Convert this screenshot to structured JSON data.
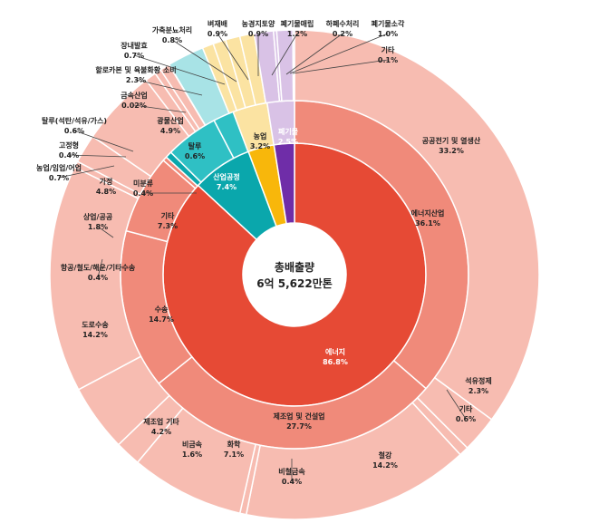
{
  "chart_data": {
    "type": "sunburst",
    "title": "",
    "center_label": [
      "총배출량",
      "6억 5,622만톤"
    ],
    "colors": {
      "energy_inner": "#e64a35",
      "energy_middle": "#f08a7a",
      "energy_outer": "#f7bcb1",
      "industrial_inner": "#0aa7ac",
      "industrial_middle": "#2fc0c4",
      "industrial_outer": "#a8e3e6",
      "agri_inner": "#f8b70b",
      "agri_outer": "#fbe3a2",
      "waste_inner": "#6f2da8",
      "waste_outer": "#d9c2e6"
    },
    "rings": [
      {
        "level": "inner",
        "segments": [
          {
            "id": "en",
            "name": "에너지",
            "value": "86.8%",
            "v": 86.8,
            "color": "energy_inner"
          },
          {
            "id": "ip",
            "name": "산업공정",
            "value": "7.4%",
            "v": 7.4,
            "color": "industrial_inner"
          },
          {
            "id": "ag",
            "name": "농업",
            "value": "3.2%",
            "v": 3.2,
            "color": "agri_inner"
          },
          {
            "id": "wa",
            "name": "폐기물",
            "value": "2.5%",
            "v": 2.5,
            "color": "waste_inner"
          }
        ]
      },
      {
        "level": "middle",
        "segments": [
          {
            "id": "en_ind",
            "name": "에너지산업",
            "value": "36.1%",
            "v": 36.1,
            "color": "energy_middle"
          },
          {
            "id": "en_mfg",
            "name": "제조업 및 건설업",
            "value": "27.7%",
            "v": 27.7,
            "color": "energy_middle"
          },
          {
            "id": "en_tr",
            "name": "수송",
            "value": "14.7%",
            "v": 14.7,
            "color": "energy_middle"
          },
          {
            "id": "en_etc",
            "name": "기타",
            "value": "7.3%",
            "v": 7.3,
            "color": "energy_middle"
          },
          {
            "id": "en_fug",
            "name": "미분류",
            "value": "0.4%",
            "v": 0.4,
            "color": "energy_middle"
          },
          {
            "id": "ip_min",
            "name": "탈루",
            "value": "0.6%",
            "v": 0.6,
            "color": "industrial_inner"
          },
          {
            "id": "ip_mine",
            "name": "광물산업",
            "value": "4.9%",
            "v": 4.9,
            "color": "industrial_middle"
          },
          {
            "id": "ip_rest",
            "name": "",
            "value": "",
            "v": 1.9,
            "color": "industrial_middle"
          },
          {
            "id": "ag_m",
            "name": "",
            "value": "",
            "v": 3.2,
            "color": "agri_outer"
          },
          {
            "id": "wa_m",
            "name": "",
            "value": "",
            "v": 2.5,
            "color": "waste_outer"
          }
        ]
      },
      {
        "level": "outer",
        "segments": [
          {
            "id": "o1",
            "name": "공공전기 및 열생산",
            "value": "33.2%",
            "v": 33.2,
            "color": "energy_outer"
          },
          {
            "id": "o2",
            "name": "석유정제",
            "value": "2.3%",
            "v": 2.3,
            "color": "energy_outer"
          },
          {
            "id": "o3",
            "name": "기타",
            "value": "0.6%",
            "v": 0.6,
            "color": "energy_outer"
          },
          {
            "id": "o4",
            "name": "철강",
            "value": "14.2%",
            "v": 14.2,
            "color": "energy_outer"
          },
          {
            "id": "o5",
            "name": "비철금속",
            "value": "0.4%",
            "v": 0.4,
            "color": "energy_outer"
          },
          {
            "id": "o6",
            "name": "화학",
            "value": "7.1%",
            "v": 7.1,
            "color": "energy_outer"
          },
          {
            "id": "o7",
            "name": "비금속",
            "value": "1.6%",
            "v": 1.6,
            "color": "energy_outer"
          },
          {
            "id": "o8",
            "name": "제조업 기타",
            "value": "4.2%",
            "v": 4.2,
            "color": "energy_outer"
          },
          {
            "id": "o9",
            "name": "도로수송",
            "value": "14.2%",
            "v": 14.2,
            "color": "energy_outer"
          },
          {
            "id": "o10",
            "name": "항공/철도/해운/기타수송",
            "value": "0.4%",
            "v": 0.4,
            "color": "energy_outer"
          },
          {
            "id": "o11",
            "name": "상업/공공",
            "value": "1.8%",
            "v": 1.8,
            "color": "energy_outer"
          },
          {
            "id": "o12",
            "name": "가정",
            "value": "4.8%",
            "v": 4.8,
            "color": "energy_outer"
          },
          {
            "id": "o13",
            "name": "농업/임업/어업",
            "value": "0.7%",
            "v": 0.7,
            "color": "energy_outer"
          },
          {
            "id": "o14",
            "name": "고정형",
            "value": "0.4%",
            "v": 0.4,
            "color": "energy_outer"
          },
          {
            "id": "o15",
            "name": "탈루(석탄/석유/가스)",
            "value": "0.6%",
            "v": 0.6,
            "color": "energy_outer"
          },
          {
            "id": "o16",
            "name": "금속산업",
            "value": "0.02%",
            "v": 0.02,
            "color": "industrial_outer"
          },
          {
            "id": "o17",
            "name": "할로카본 및 육불화황 소비",
            "value": "2.3%",
            "v": 2.3,
            "color": "industrial_outer"
          },
          {
            "id": "o18",
            "name": "장내발효",
            "value": "0.7%",
            "v": 0.7,
            "color": "agri_outer"
          },
          {
            "id": "o19",
            "name": "가축분뇨처리",
            "value": "0.8%",
            "v": 0.8,
            "color": "agri_outer"
          },
          {
            "id": "o20",
            "name": "벼재배",
            "value": "0.9%",
            "v": 0.9,
            "color": "agri_outer"
          },
          {
            "id": "o21",
            "name": "농경지토양",
            "value": "0.9%",
            "v": 0.9,
            "color": "agri_outer"
          },
          {
            "id": "o22",
            "name": "폐기물매립",
            "value": "1.2%",
            "v": 1.2,
            "color": "waste_outer"
          },
          {
            "id": "o23",
            "name": "하폐수처리",
            "value": "0.2%",
            "v": 0.2,
            "color": "waste_outer"
          },
          {
            "id": "o24",
            "name": "폐기물소각",
            "value": "1.0%",
            "v": 1.0,
            "color": "waste_outer"
          },
          {
            "id": "o25",
            "name": "기타",
            "value": "0.1%",
            "v": 0.1,
            "color": "waste_outer"
          }
        ]
      }
    ]
  }
}
